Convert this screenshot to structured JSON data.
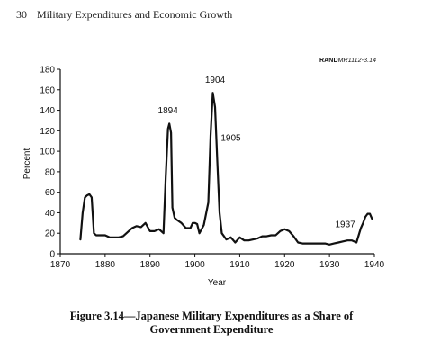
{
  "header": {
    "page_number": "30",
    "running_title": "Military Expenditures and Economic Growth"
  },
  "source_tag": {
    "bold_part": "RAND",
    "italic_part": "MR1112-3.14"
  },
  "caption": {
    "line1": "Figure 3.14—Japanese Military Expenditures as a Share of",
    "line2": "Government Expenditure"
  },
  "chart_data": {
    "type": "line",
    "title": "",
    "xlabel": "Year",
    "ylabel": "Percent",
    "xlim": [
      1870,
      1940
    ],
    "ylim": [
      0,
      180
    ],
    "xticks": [
      1870,
      1880,
      1890,
      1900,
      1910,
      1920,
      1930,
      1940
    ],
    "yticks": [
      0,
      20,
      40,
      60,
      80,
      100,
      120,
      140,
      160,
      180
    ],
    "grid": false,
    "series": [
      {
        "x": [
          1874.5,
          1875,
          1875.5,
          1876,
          1876.5,
          1877,
          1877.5,
          1878,
          1879,
          1880,
          1881,
          1882,
          1883,
          1884,
          1885,
          1886,
          1887,
          1888,
          1889,
          1890,
          1891,
          1892,
          1893,
          1893.5,
          1894,
          1894.3,
          1894.7,
          1895,
          1895.5,
          1896,
          1897,
          1898,
          1899,
          1899.5,
          1900,
          1900.5,
          1901,
          1902,
          1903,
          1903.5,
          1904,
          1904.5,
          1905,
          1905.5,
          1906,
          1907,
          1908,
          1909,
          1910,
          1911,
          1912,
          1913,
          1914,
          1915,
          1916,
          1917,
          1918,
          1919,
          1920,
          1921,
          1922,
          1923,
          1924,
          1925,
          1926,
          1927,
          1928,
          1929,
          1930,
          1931,
          1932,
          1933,
          1934,
          1935,
          1936,
          1937,
          1937.5,
          1938,
          1938.5,
          1939,
          1939.5
        ],
        "y": [
          14,
          40,
          55,
          57,
          58,
          55,
          20,
          18,
          18,
          18,
          16,
          16,
          16,
          17,
          21,
          25,
          27,
          26,
          30,
          22,
          22,
          24,
          20,
          75,
          122,
          127,
          118,
          45,
          35,
          33,
          30,
          25,
          25,
          30,
          30,
          29,
          20,
          28,
          50,
          115,
          157,
          143,
          90,
          40,
          20,
          14,
          16,
          11,
          16,
          13,
          13,
          14,
          15,
          17,
          17,
          18,
          18,
          22,
          24,
          22,
          17,
          11,
          10,
          10,
          10,
          10,
          10,
          10,
          9,
          10,
          11,
          12,
          13,
          13,
          11,
          25,
          30,
          36,
          39,
          39,
          34
        ]
      }
    ],
    "annotations": [
      {
        "text": "1894",
        "x": 1894,
        "y": 137
      },
      {
        "text": "1904",
        "x": 1904.5,
        "y": 167
      },
      {
        "text": "1905",
        "x": 1908,
        "y": 110
      },
      {
        "text": "1937",
        "x": 1933.5,
        "y": 26
      }
    ]
  }
}
